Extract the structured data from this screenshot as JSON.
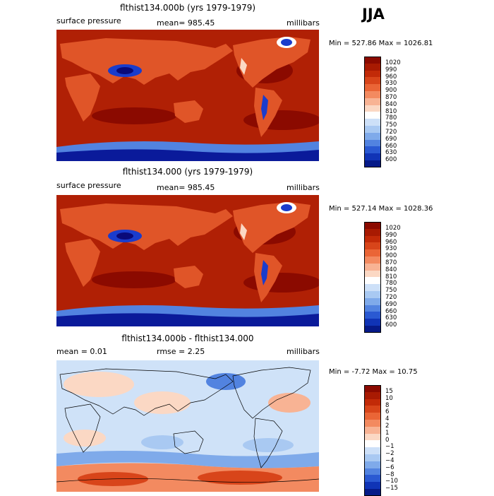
{
  "season": "JJA",
  "colors": {
    "land_mid": "#dd4a1f",
    "ocean_dark": "#a51a02",
    "high": "#8b0a00",
    "low_blue": "#1a3ccc",
    "deep_blue": "#0a0a7a",
    "diff_bg": "#cfe2f8",
    "diff_warm": "#f4b59b",
    "diff_hot": "#e05030"
  },
  "panels": [
    {
      "title": "flthist134.000b (yrs 1979-1979)",
      "left": "surface pressure",
      "center": "mean= 985.45",
      "right": "millibars",
      "minmax": "Min = 527.86 Max = 1026.81",
      "kind": "pressure"
    },
    {
      "title": "flthist134.000 (yrs 1979-1979)",
      "left": "surface pressure",
      "center": "mean= 985.45",
      "right": "millibars",
      "minmax": "Min = 527.14 Max = 1028.36",
      "kind": "pressure"
    },
    {
      "title": "flthist134.000b - flthist134.000",
      "left": "mean =    0.01",
      "center": "rmse =    2.25",
      "right": "millibars",
      "minmax": "Min =  -7.72 Max =   10.75",
      "kind": "diff"
    }
  ],
  "legend_pressure": {
    "labels": [
      "1020",
      "990",
      "960",
      "930",
      "900",
      "870",
      "840",
      "810",
      "780",
      "750",
      "720",
      "690",
      "660",
      "630",
      "600"
    ],
    "colors": [
      "#8b0a00",
      "#a81a02",
      "#c22a08",
      "#d8451a",
      "#ea6536",
      "#f38a60",
      "#f8b394",
      "#fbd8c4",
      "#ffffff",
      "#cde0f8",
      "#a9c9f2",
      "#7faaea",
      "#5283e0",
      "#2a59d2",
      "#1034b6",
      "#061a88"
    ]
  },
  "legend_diff": {
    "labels": [
      "15",
      "10",
      "8",
      "6",
      "4",
      "2",
      "1",
      "0",
      "−1",
      "−2",
      "−4",
      "−6",
      "−8",
      "−10",
      "−15"
    ],
    "colors": [
      "#8b0a00",
      "#a81a02",
      "#c22a08",
      "#d8451a",
      "#ea6536",
      "#f38a60",
      "#f8b394",
      "#fbd8c4",
      "#ffffff",
      "#cde0f8",
      "#a9c9f2",
      "#7faaea",
      "#5283e0",
      "#2a59d2",
      "#1034b6",
      "#061a88"
    ]
  }
}
